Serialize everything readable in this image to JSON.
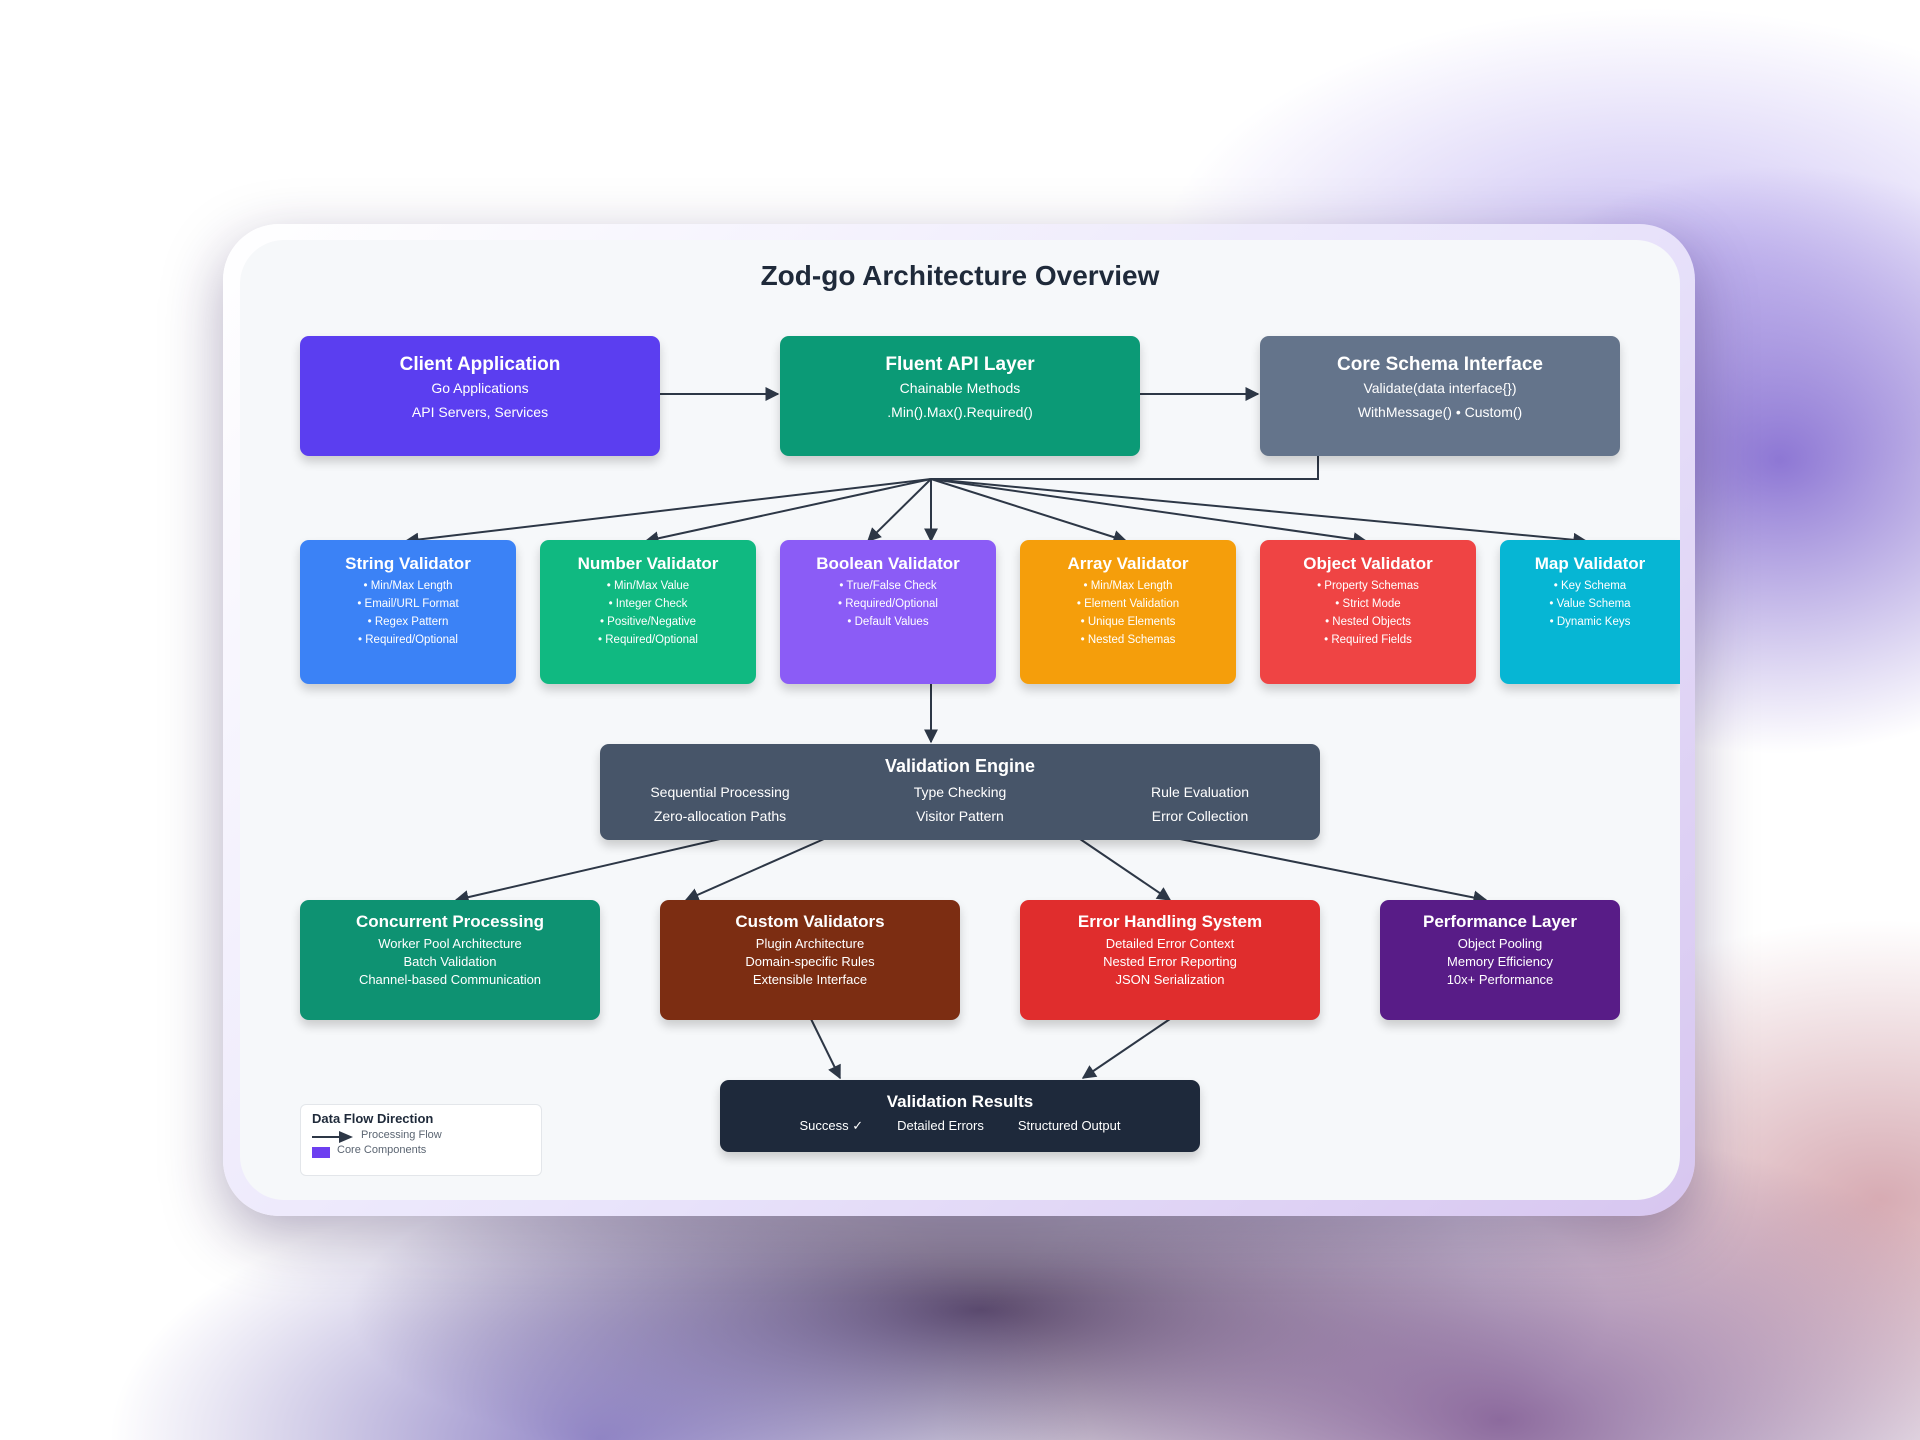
{
  "diagram": {
    "title": "Zod-go Architecture Overview",
    "nodes": {
      "client": {
        "title": "Client Application",
        "lines": [
          "Go Applications",
          "API Servers, Services"
        ],
        "color": "#5b3ef0"
      },
      "fluent": {
        "title": "Fluent API Layer",
        "lines": [
          "Chainable Methods",
          ".Min().Max().Required()"
        ],
        "color": "#0b9a76"
      },
      "core": {
        "title": "Core Schema Interface",
        "lines": [
          "Validate(data interface{})",
          "WithMessage() • Custom()"
        ],
        "color": "#64748b"
      },
      "string": {
        "title": "String Validator",
        "lines": [
          "• Min/Max Length",
          "• Email/URL Format",
          "• Regex Pattern",
          "• Required/Optional"
        ],
        "color": "#3b82f6"
      },
      "number": {
        "title": "Number Validator",
        "lines": [
          "• Min/Max Value",
          "• Integer Check",
          "• Positive/Negative",
          "• Required/Optional"
        ],
        "color": "#10b981"
      },
      "boolean": {
        "title": "Boolean Validator",
        "lines": [
          "• True/False Check",
          "• Required/Optional",
          "• Default Values"
        ],
        "color": "#8b5cf6"
      },
      "array": {
        "title": "Array Validator",
        "lines": [
          "• Min/Max Length",
          "• Element Validation",
          "• Unique Elements",
          "• Nested Schemas"
        ],
        "color": "#f59e0b"
      },
      "object": {
        "title": "Object Validator",
        "lines": [
          "• Property Schemas",
          "• Strict Mode",
          "• Nested Objects",
          "• Required Fields"
        ],
        "color": "#ef4444"
      },
      "map": {
        "title": "Map Validator",
        "lines": [
          "• Key Schema",
          "• Value Schema",
          "• Dynamic Keys"
        ],
        "color": "#06b6d4"
      },
      "engine": {
        "title": "Validation Engine",
        "lines": [
          "Sequential Processing",
          "Type Checking",
          "Rule Evaluation",
          "Zero-allocation Paths",
          "Visitor Pattern",
          "Error Collection"
        ],
        "color": "#475569"
      },
      "concurrent": {
        "title": "Concurrent Processing",
        "lines": [
          "Worker Pool Architecture",
          "Batch Validation",
          "Channel-based Communication"
        ],
        "color": "#0e9272"
      },
      "custom": {
        "title": "Custom Validators",
        "lines": [
          "Plugin Architecture",
          "Domain-specific Rules",
          "Extensible Interface"
        ],
        "color": "#7c2d12"
      },
      "errors": {
        "title": "Error Handling System",
        "lines": [
          "Detailed Error Context",
          "Nested Error Reporting",
          "JSON Serialization"
        ],
        "color": "#e02d2d"
      },
      "performance": {
        "title": "Performance Layer",
        "lines": [
          "Object Pooling",
          "Memory Efficiency",
          "10x+ Performance"
        ],
        "color": "#581c87"
      },
      "results": {
        "title": "Validation Results",
        "lines": [
          "Success ✓",
          "Detailed Errors",
          "Structured Output"
        ],
        "color": "#1e293b"
      }
    },
    "edges": [
      [
        "client",
        "fluent"
      ],
      [
        "fluent",
        "core"
      ],
      [
        "core",
        "string"
      ],
      [
        "core",
        "number"
      ],
      [
        "core",
        "boolean"
      ],
      [
        "core",
        "array"
      ],
      [
        "core",
        "object"
      ],
      [
        "core",
        "map"
      ],
      [
        "boolean",
        "engine"
      ],
      [
        "engine",
        "concurrent"
      ],
      [
        "engine",
        "custom"
      ],
      [
        "engine",
        "errors"
      ],
      [
        "engine",
        "performance"
      ],
      [
        "custom",
        "results"
      ],
      [
        "errors",
        "results"
      ]
    ],
    "legend": {
      "title": "Data Flow Direction",
      "flow_label": "Processing Flow",
      "core_label": "Core Components",
      "swatch_color": "#6d3ff0"
    },
    "arrow_color": "#2d3746"
  }
}
